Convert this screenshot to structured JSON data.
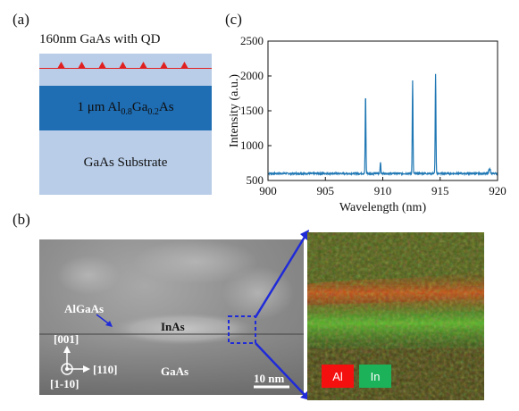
{
  "panel_a": {
    "label": "(a)",
    "top_layer_title": "160nm GaAs with QD",
    "middle_layer": {
      "prefix": "1 μm Al",
      "sub1": "0.8",
      "mid": "Ga",
      "sub2": "0.2",
      "suffix": "As"
    },
    "bottom_layer": "GaAs Substrate",
    "colors": {
      "light_layer": "#b9cde8",
      "dark_layer": "#1f6db3",
      "qd": "#e02020"
    }
  },
  "panel_b": {
    "label": "(b)",
    "labels": {
      "algaas": "AlGaAs",
      "inas": "InAs",
      "gaas": "GaAs",
      "dir_001": "[001]",
      "dir_110": "[110]",
      "dir_1m10": "[1-10]",
      "scale_bar": "10 nm"
    },
    "eds_legend": [
      {
        "label": "Al",
        "color": "#f51010"
      },
      {
        "label": "In",
        "color": "#1bb25a"
      }
    ]
  },
  "panel_c": {
    "label": "(c)"
  },
  "chart_data": {
    "type": "line",
    "title": "",
    "xlabel": "Wavelength (nm)",
    "ylabel": "Intensity (a.u.)",
    "xlim": [
      900,
      920
    ],
    "ylim": [
      500,
      2500
    ],
    "xticks": [
      900,
      905,
      910,
      915,
      920
    ],
    "yticks": [
      500,
      1000,
      1500,
      2000,
      2500
    ],
    "grid": false,
    "series": [
      {
        "color": "#1f77b4",
        "baseline": 600,
        "peaks": [
          {
            "x": 908.5,
            "y": 1740
          },
          {
            "x": 909.8,
            "y": 770
          },
          {
            "x": 912.6,
            "y": 1930
          },
          {
            "x": 914.6,
            "y": 2020
          }
        ]
      }
    ]
  }
}
